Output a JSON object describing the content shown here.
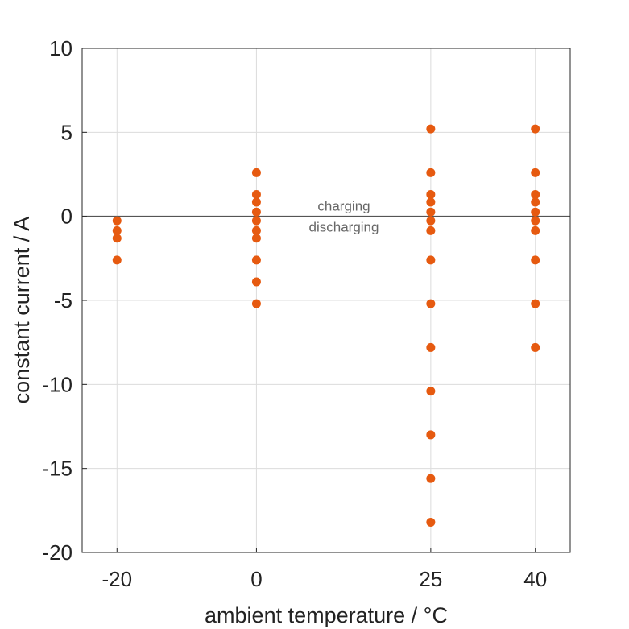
{
  "chart_data": {
    "type": "scatter",
    "xlabel": "ambient temperature / °C",
    "ylabel": "constant current / A",
    "x_ticks": [
      -20,
      0,
      25,
      40
    ],
    "x_tick_labels": [
      "-20",
      "0",
      "25",
      "40"
    ],
    "xlim": [
      -25,
      45
    ],
    "ylim": [
      -20,
      10
    ],
    "y_ticks": [
      10,
      5,
      0,
      -5,
      -10,
      -15,
      -20
    ],
    "y_tick_labels": [
      "10",
      "5",
      "0",
      "-5",
      "-10",
      "-15",
      "-20"
    ],
    "grid": true,
    "reference_line_y": 0,
    "annotations": {
      "above": "charging",
      "below": "discharging"
    },
    "marker_color": "#e65a10",
    "series": [
      {
        "points": [
          {
            "x": -20,
            "y": -0.26
          },
          {
            "x": -20,
            "y": -0.85
          },
          {
            "x": -20,
            "y": -1.3
          },
          {
            "x": -20,
            "y": -2.6
          },
          {
            "x": 0,
            "y": 2.6
          },
          {
            "x": 0,
            "y": 1.3
          },
          {
            "x": 0,
            "y": 0.85
          },
          {
            "x": 0,
            "y": 0.26
          },
          {
            "x": 0,
            "y": -0.26
          },
          {
            "x": 0,
            "y": -0.85
          },
          {
            "x": 0,
            "y": -1.3
          },
          {
            "x": 0,
            "y": -2.6
          },
          {
            "x": 0,
            "y": -3.9
          },
          {
            "x": 0,
            "y": -5.2
          },
          {
            "x": 25,
            "y": 5.2
          },
          {
            "x": 25,
            "y": 2.6
          },
          {
            "x": 25,
            "y": 1.3
          },
          {
            "x": 25,
            "y": 0.85
          },
          {
            "x": 25,
            "y": 0.26
          },
          {
            "x": 25,
            "y": -0.26
          },
          {
            "x": 25,
            "y": -0.85
          },
          {
            "x": 25,
            "y": -2.6
          },
          {
            "x": 25,
            "y": -5.2
          },
          {
            "x": 25,
            "y": -7.8
          },
          {
            "x": 25,
            "y": -10.4
          },
          {
            "x": 25,
            "y": -13.0
          },
          {
            "x": 25,
            "y": -15.6
          },
          {
            "x": 25,
            "y": -18.2
          },
          {
            "x": 40,
            "y": 5.2
          },
          {
            "x": 40,
            "y": 2.6
          },
          {
            "x": 40,
            "y": 1.3
          },
          {
            "x": 40,
            "y": 0.85
          },
          {
            "x": 40,
            "y": 0.26
          },
          {
            "x": 40,
            "y": -0.26
          },
          {
            "x": 40,
            "y": -0.85
          },
          {
            "x": 40,
            "y": -2.6
          },
          {
            "x": 40,
            "y": -5.2
          },
          {
            "x": 40,
            "y": -7.8
          }
        ]
      }
    ]
  }
}
